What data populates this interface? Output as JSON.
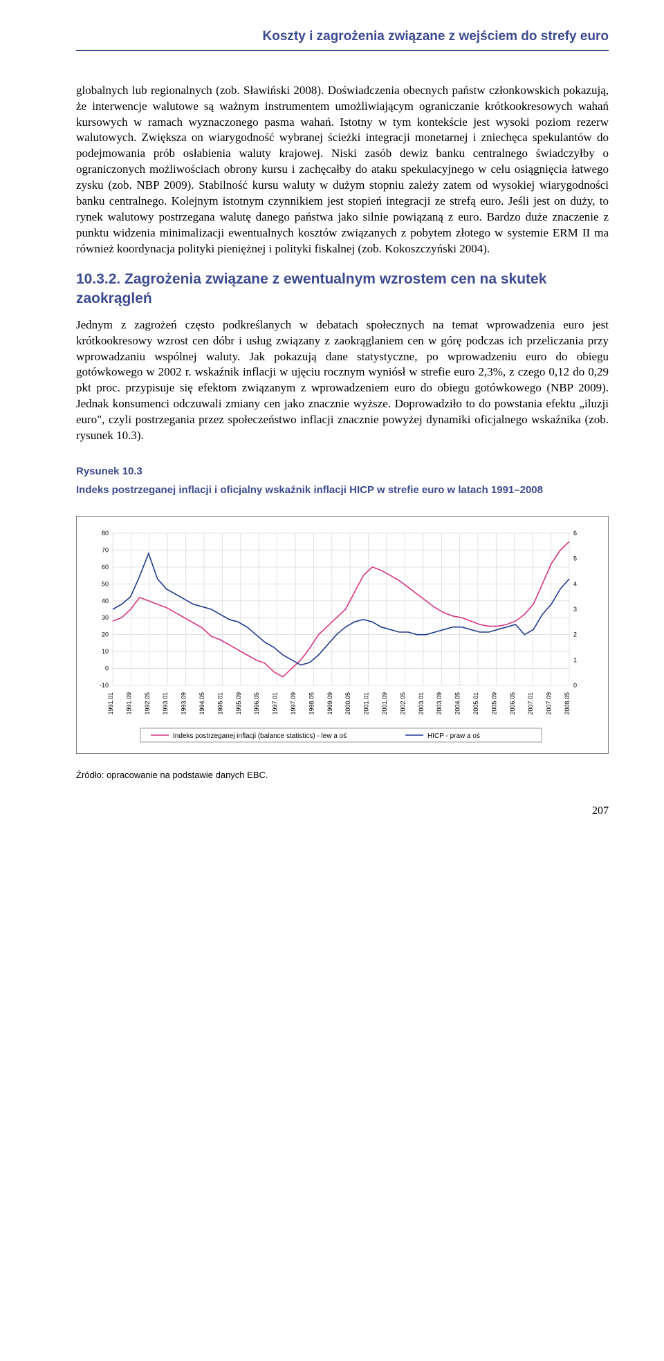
{
  "header": {
    "title": "Koszty i zagrożenia związane z wejściem do strefy euro"
  },
  "paragraphs": {
    "p1": "globalnych lub regionalnych (zob. Sławiński 2008). Doświadczenia obecnych państw członkowskich pokazują, że interwencje walutowe są ważnym instrumentem umożliwiającym ograniczanie krótkookresowych wahań kursowych w ramach wyznaczonego pasma wahań. Istotny w tym kontekście jest wysoki poziom rezerw walutowych. Zwiększa on wiarygodność wybranej ścieżki integracji monetarnej i zniechęca spekulantów do podejmowania prób osłabienia waluty krajowej. Niski zasób dewiz banku centralnego świadczyłby o ograniczonych możliwościach obrony kursu i zachęcałby do ataku spekulacyjnego w celu osiągnięcia łatwego zysku (zob. NBP 2009). Stabilność kursu waluty w dużym stopniu zależy zatem od wysokiej wiarygodności banku centralnego. Kolejnym istotnym czynnikiem jest stopień integracji ze strefą euro. Jeśli jest on duży, to rynek walutowy postrzegana walutę danego państwa jako silnie powiązaną z euro. Bardzo duże znaczenie z punktu widzenia minimalizacji ewentualnych kosztów związanych z pobytem złotego w systemie ERM II ma również koordynacja polityki pieniężnej i polityki fiskalnej (zob. Kokoszczyński 2004).",
    "p2": "Jednym z zagrożeń często podkreślanych w debatach społecznych na temat wprowadzenia euro jest krótkookresowy wzrost cen dóbr i usług związany z zaokrąglaniem cen w górę podczas ich przeliczania przy wprowadzaniu wspólnej waluty. Jak pokazują dane statystyczne, po wprowadzeniu euro do obiegu gotówkowego w 2002 r. wskaźnik inflacji w ujęciu rocznym wyniósł w strefie euro 2,3%, z czego 0,12 do 0,29 pkt proc. przypisuje się efektom związanym z wprowadzeniem euro do obiegu gotówkowego (NBP 2009). Jednak konsumenci odczuwali zmiany cen jako znacznie wyższe. Doprowadziło to do powstania efektu „iluzji euro\", czyli postrzegania przez społeczeństwo inflacji znacznie powyżej dynamiki oficjalnego wskaźnika (zob. rysunek 10.3)."
  },
  "section": {
    "heading": "10.3.2. Zagrożenia związane z ewentualnym wzrostem cen na skutek zaokrągleń"
  },
  "figure": {
    "label": "Rysunek 10.3",
    "title": "Indeks postrzeganej inflacji i oficjalny wskaźnik inflacji HICP w strefie euro w latach 1991–2008",
    "source": "Źródło: opracowanie na podstawie danych EBC."
  },
  "chart": {
    "type": "line",
    "background_color": "#ffffff",
    "border_color": "#7f7f7f",
    "grid_color": "#e0e0e0",
    "axis_font_size": 9,
    "axis_font_family": "Arial",
    "left_axis": {
      "min": -10,
      "max": 80,
      "ticks": [
        -10,
        0,
        10,
        20,
        30,
        40,
        50,
        60,
        70,
        80
      ]
    },
    "right_axis": {
      "min": 0,
      "max": 6,
      "ticks": [
        0,
        1,
        2,
        3,
        4,
        5,
        6
      ]
    },
    "x_labels": [
      "1991.01",
      "1991.09",
      "1992.05",
      "1993.01",
      "1993.09",
      "1994.05",
      "1995.01",
      "1995.09",
      "1996.05",
      "1997.01",
      "1997.09",
      "1998.05",
      "1999.09",
      "2000.05",
      "2001.01",
      "2001.09",
      "2002.05",
      "2003.01",
      "2003.09",
      "2004.05",
      "2005.01",
      "2005.09",
      "2006.05",
      "2007.01",
      "2007.09",
      "2008.05"
    ],
    "series": [
      {
        "name": "perceived",
        "label": "Indeks postrzeganej inflacji (balance statistics) - lew a oś",
        "color": "#d63384",
        "axis": "left",
        "line_width": 1.6,
        "values": [
          28,
          30,
          35,
          42,
          40,
          38,
          36,
          33,
          30,
          27,
          24,
          19,
          17,
          14,
          11,
          8,
          5,
          3,
          -2,
          -5,
          0,
          5,
          12,
          20,
          25,
          30,
          35,
          45,
          55,
          60,
          58,
          55,
          52,
          48,
          44,
          40,
          36,
          33,
          31,
          30,
          28,
          26,
          25,
          25,
          26,
          28,
          32,
          38,
          50,
          62,
          70,
          75
        ]
      },
      {
        "name": "hicp",
        "label": "HICP - praw a oś",
        "color": "#1f3b8f",
        "axis": "right",
        "line_width": 1.6,
        "values": [
          3.0,
          3.2,
          3.5,
          4.3,
          5.2,
          4.2,
          3.8,
          3.6,
          3.4,
          3.2,
          3.1,
          3.0,
          2.8,
          2.6,
          2.5,
          2.3,
          2.0,
          1.7,
          1.5,
          1.2,
          1.0,
          0.8,
          0.9,
          1.2,
          1.6,
          2.0,
          2.3,
          2.5,
          2.6,
          2.5,
          2.3,
          2.2,
          2.1,
          2.1,
          2.0,
          2.0,
          2.1,
          2.2,
          2.3,
          2.3,
          2.2,
          2.1,
          2.1,
          2.2,
          2.3,
          2.4,
          2.0,
          2.2,
          2.8,
          3.2,
          3.8,
          4.2
        ]
      }
    ],
    "legend": {
      "position": "bottom",
      "font_size": 10
    }
  },
  "page_number": "207"
}
